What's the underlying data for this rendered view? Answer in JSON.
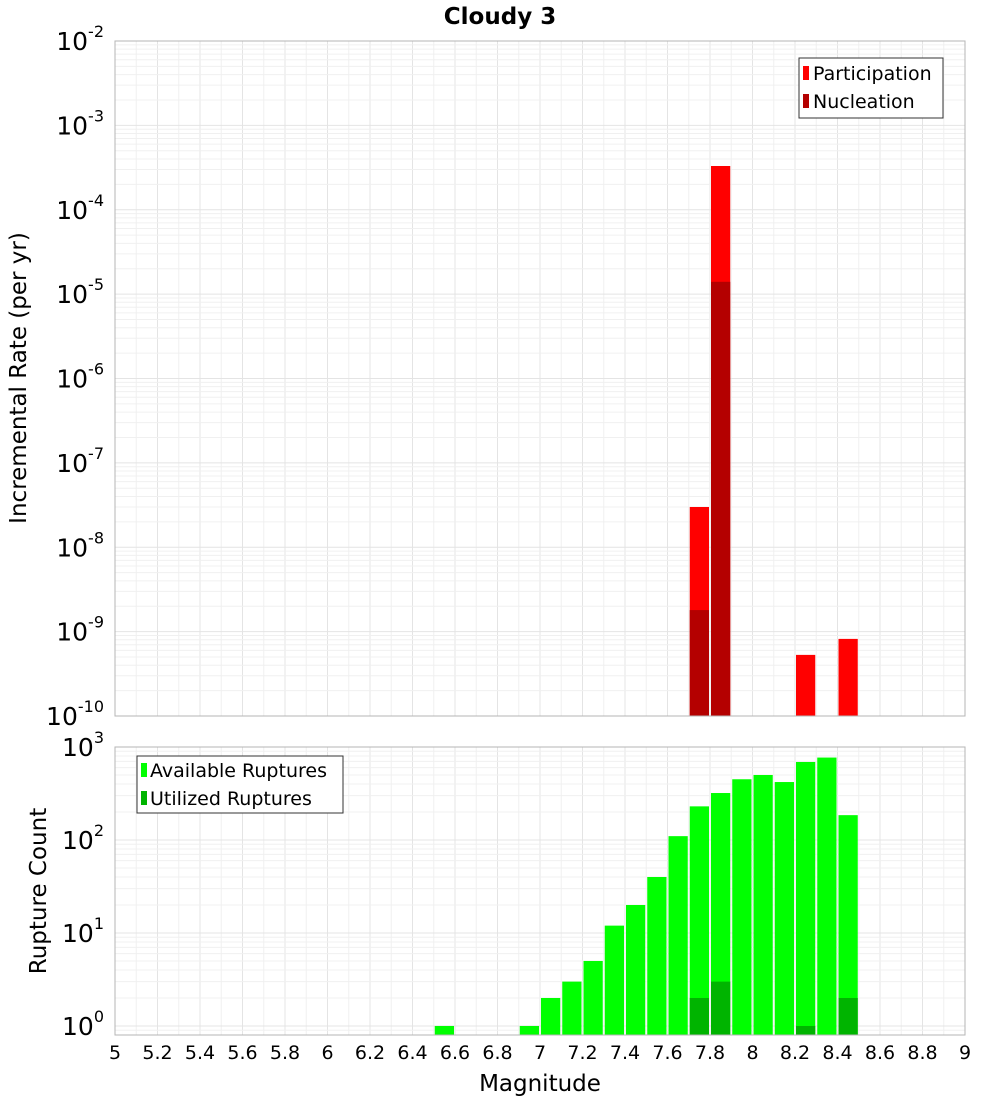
{
  "title": "Cloudy 3",
  "colors": {
    "participation": "#ff0000",
    "nucleation": "#b40000",
    "available": "#00ff00",
    "utilized": "#00b400"
  },
  "chart_data": [
    {
      "type": "bar",
      "scale": "log",
      "ylabel": "Incremental Rate (per yr)",
      "ylim": [
        1e-10,
        0.01
      ],
      "y_ticks": [
        {
          "base": "10",
          "exp": "-10",
          "value": 1e-10
        },
        {
          "base": "10",
          "exp": "-9",
          "value": 1e-09
        },
        {
          "base": "10",
          "exp": "-8",
          "value": 1e-08
        },
        {
          "base": "10",
          "exp": "-7",
          "value": 1e-07
        },
        {
          "base": "10",
          "exp": "-6",
          "value": 1e-06
        },
        {
          "base": "10",
          "exp": "-5",
          "value": 1e-05
        },
        {
          "base": "10",
          "exp": "-4",
          "value": 0.0001
        },
        {
          "base": "10",
          "exp": "-3",
          "value": 0.001
        },
        {
          "base": "10",
          "exp": "-2",
          "value": 0.01
        }
      ],
      "legend": {
        "placement": "top-right",
        "entries": [
          "Participation",
          "Nucleation"
        ]
      },
      "series": [
        {
          "name": "Participation",
          "points": [
            {
              "x": 7.75,
              "y": 3e-08
            },
            {
              "x": 7.85,
              "y": 0.00033
            },
            {
              "x": 8.25,
              "y": 5.3e-10
            },
            {
              "x": 8.45,
              "y": 8.2e-10
            }
          ]
        },
        {
          "name": "Nucleation",
          "points": [
            {
              "x": 7.75,
              "y": 1.8e-09
            },
            {
              "x": 7.85,
              "y": 1.4e-05
            }
          ]
        }
      ]
    },
    {
      "type": "bar",
      "scale": "log",
      "ylabel": "Rupture Count",
      "xlabel": "Magnitude",
      "ylim": [
        0.8,
        1000
      ],
      "y_ticks": [
        {
          "base": "10",
          "exp": "0",
          "value": 1
        },
        {
          "base": "10",
          "exp": "1",
          "value": 10
        },
        {
          "base": "10",
          "exp": "2",
          "value": 100
        },
        {
          "base": "10",
          "exp": "3",
          "value": 1000
        }
      ],
      "legend": {
        "placement": "top-left",
        "entries": [
          "Available Ruptures",
          "Utilized Ruptures"
        ]
      },
      "series": [
        {
          "name": "Available Ruptures",
          "points": [
            {
              "x": 6.55,
              "y": 1
            },
            {
              "x": 6.95,
              "y": 1
            },
            {
              "x": 7.05,
              "y": 2
            },
            {
              "x": 7.15,
              "y": 3
            },
            {
              "x": 7.25,
              "y": 5
            },
            {
              "x": 7.35,
              "y": 12
            },
            {
              "x": 7.45,
              "y": 20
            },
            {
              "x": 7.55,
              "y": 40
            },
            {
              "x": 7.65,
              "y": 110
            },
            {
              "x": 7.75,
              "y": 230
            },
            {
              "x": 7.85,
              "y": 320
            },
            {
              "x": 7.95,
              "y": 450
            },
            {
              "x": 8.05,
              "y": 500
            },
            {
              "x": 8.15,
              "y": 420
            },
            {
              "x": 8.25,
              "y": 690
            },
            {
              "x": 8.35,
              "y": 770
            },
            {
              "x": 8.45,
              "y": 185
            }
          ]
        },
        {
          "name": "Utilized Ruptures",
          "points": [
            {
              "x": 7.75,
              "y": 2
            },
            {
              "x": 7.85,
              "y": 3
            },
            {
              "x": 8.25,
              "y": 1
            },
            {
              "x": 8.45,
              "y": 2
            }
          ]
        }
      ]
    }
  ],
  "x_axis": {
    "label": "Magnitude",
    "min": 5,
    "max": 9,
    "tick_labels": [
      "5",
      "5.2",
      "5.4",
      "5.6",
      "5.8",
      "6",
      "6.2",
      "6.4",
      "6.6",
      "6.8",
      "7",
      "7.2",
      "7.4",
      "7.6",
      "7.8",
      "8",
      "8.2",
      "8.4",
      "8.6",
      "8.8",
      "9"
    ],
    "bin_width": 0.1
  }
}
